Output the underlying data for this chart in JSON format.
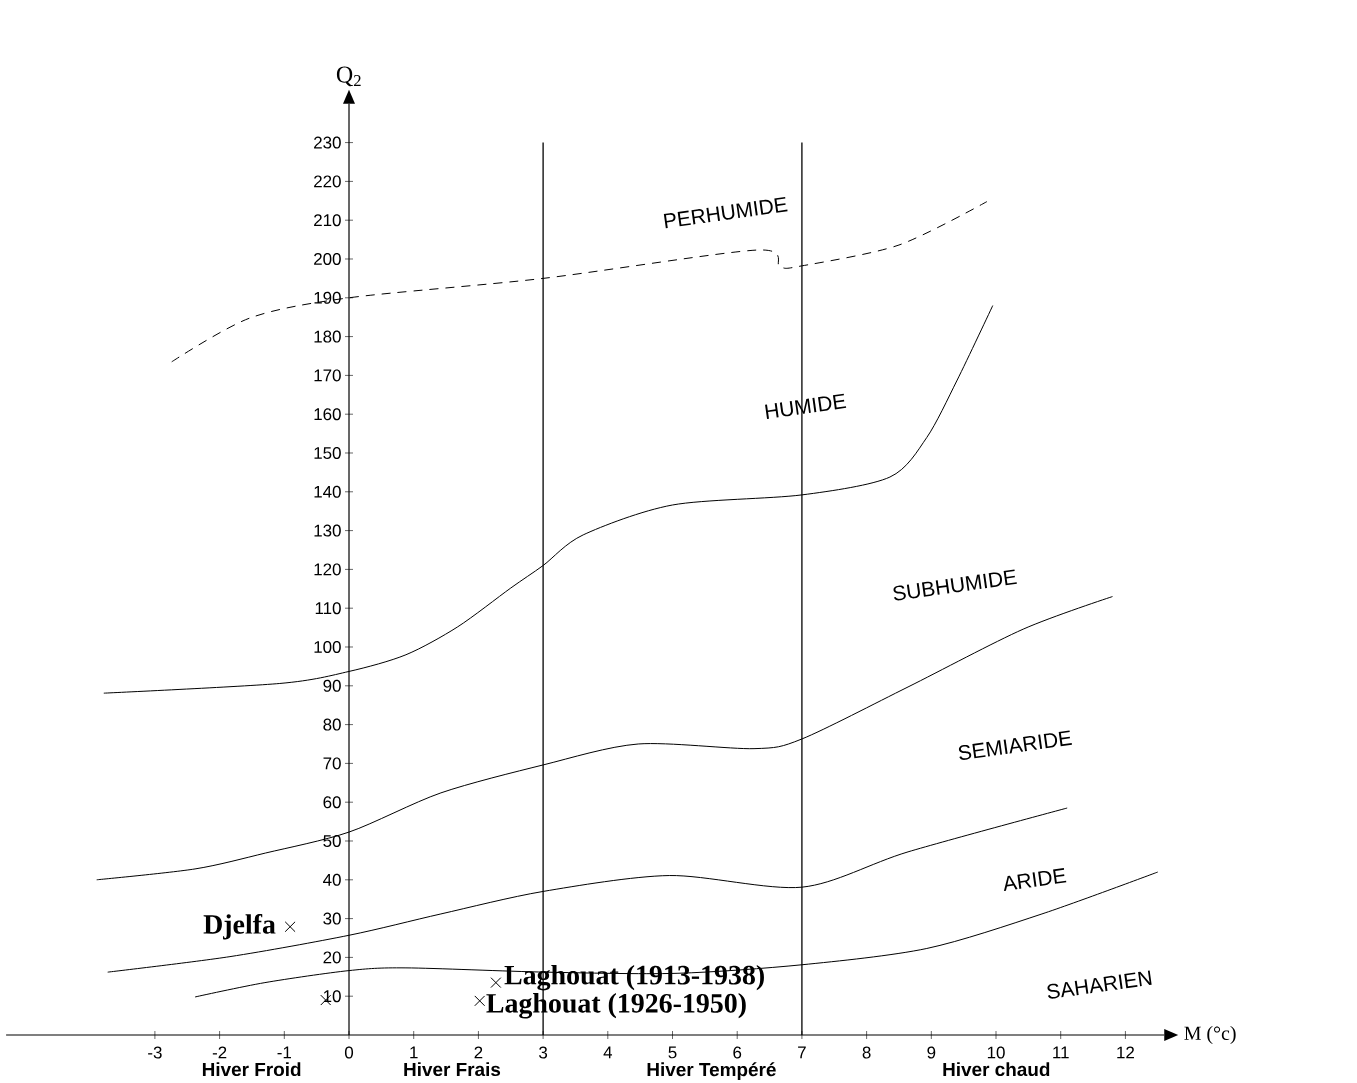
{
  "chart_data": {
    "type": "line",
    "xlabel": "M (°c)",
    "ylabel": "Q$_{2}$",
    "xlim": [
      -5.3,
      12.6
    ],
    "ylim": [
      0,
      240
    ],
    "xticks": [
      -3,
      -2,
      -1,
      0,
      1,
      2,
      3,
      4,
      5,
      6,
      7,
      8,
      9,
      10,
      11,
      12
    ],
    "yticks": [
      10,
      20,
      30,
      40,
      50,
      60,
      70,
      80,
      90,
      100,
      110,
      120,
      130,
      140,
      150,
      160,
      170,
      180,
      190,
      200,
      210,
      220,
      230
    ],
    "grid": false,
    "series": [
      {
        "line_style": "dashed",
        "color": "#000000",
        "x": [
          -2.74,
          -1.53,
          0,
          3.0,
          6.3,
          6.66,
          6.99,
          8.5,
          9.86
        ],
        "values": [
          173.5,
          184.8,
          190,
          195,
          202.3,
          198,
          198.2,
          203.6,
          214.8
        ]
      },
      {
        "color": "#000000",
        "x": [
          -3.79,
          -1.07,
          0,
          0.88,
          1.68,
          2.5,
          3.0,
          3.62,
          5.0,
          7.0,
          8.36,
          8.93,
          9.4,
          9.95
        ],
        "values": [
          88.1,
          90.6,
          93.7,
          98,
          105.2,
          115.2,
          121,
          128.9,
          136.6,
          139.2,
          143.8,
          154,
          168.8,
          188
        ]
      },
      {
        "color": "#000000",
        "x": [
          -3.9,
          -2.38,
          -1.29,
          0,
          1.42,
          3.0,
          4.47,
          6.26,
          7.0,
          8.64,
          10.42,
          11.8
        ],
        "values": [
          40,
          42.8,
          46.9,
          52.3,
          62.4,
          69.6,
          75,
          73.8,
          76.3,
          89.7,
          104.6,
          113
        ]
      },
      {
        "color": "#000000",
        "x": [
          -3.73,
          -1.84,
          0,
          1.42,
          3.0,
          4.95,
          7.0,
          8.64,
          11.1
        ],
        "values": [
          16.2,
          20.2,
          25.7,
          31.2,
          37,
          41.1,
          38.1,
          47.2,
          58.5
        ]
      },
      {
        "color": "#000000",
        "x": [
          -2.38,
          -1.3,
          0,
          0.88,
          3.04,
          5.07,
          7.0,
          8.93,
          10.71,
          12.5
        ],
        "values": [
          9.8,
          13.5,
          16.6,
          17.3,
          16.2,
          15.9,
          18.1,
          22.3,
          31.2,
          42
        ]
      },
      {
        "type": "scatter",
        "marker": "cross",
        "color": "#000000",
        "x": [
          -0.91,
          -0.36,
          2.27,
          2.02
        ],
        "values": [
          27.9,
          9,
          13.5,
          8.8
        ]
      }
    ],
    "ref_lines": [
      {
        "axis": "x",
        "value": 3,
        "color": "#000000"
      },
      {
        "axis": "x",
        "value": 7,
        "color": "#000000"
      }
    ],
    "annotations": [
      "PERHUMIDE",
      "HUMIDE",
      "SUBHUMIDE",
      "SEMIARIDE",
      "ARIDE",
      "SAHARIEN",
      "Hiver Froid",
      "Hiver Frais",
      "Hiver Tempéré",
      "Hiver chaud",
      {
        "text": "Djelfa",
        "x": -0.91,
        "y": 27.9
      },
      {
        "text": "Laghouat (1913-1938)",
        "x": 2.27,
        "y": 13.5
      },
      {
        "text": "Laghouat (1926-1950)",
        "x": 2.02,
        "y": 8.8
      }
    ]
  }
}
